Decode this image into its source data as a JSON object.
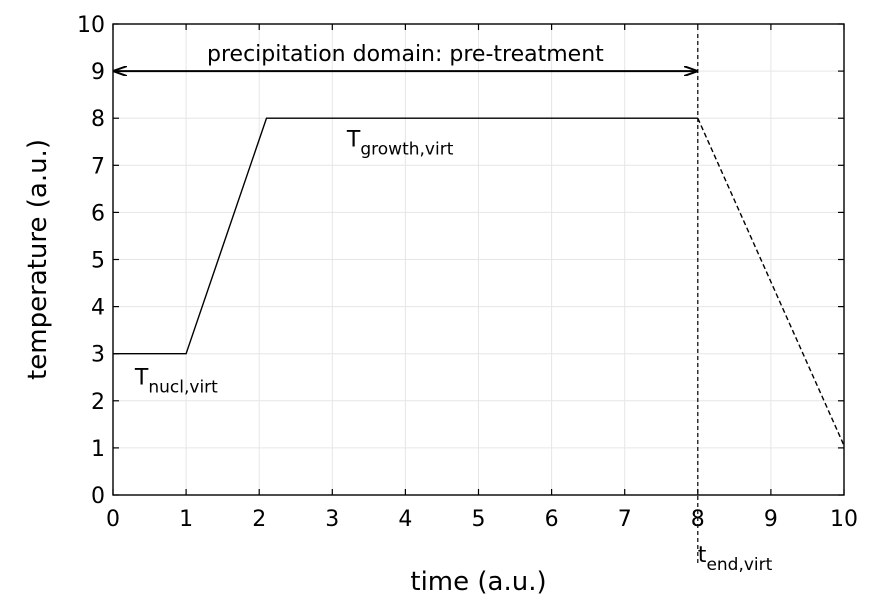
{
  "chart_data": {
    "type": "line",
    "xlabel": "time (a.u.)",
    "ylabel": "temperature (a.u.)",
    "xlim": [
      0,
      10
    ],
    "ylim": [
      0,
      10
    ],
    "xticks": [
      "0",
      "1",
      "2",
      "3",
      "4",
      "5",
      "6",
      "7",
      "8",
      "9",
      "10"
    ],
    "yticks": [
      "0",
      "1",
      "2",
      "3",
      "4",
      "5",
      "6",
      "7",
      "8",
      "9",
      "10"
    ],
    "grid": true,
    "series": [
      {
        "style": "solid",
        "color": "#000000",
        "points": [
          {
            "x": 0,
            "y": 3
          },
          {
            "x": 1,
            "y": 3
          },
          {
            "x": 2.1,
            "y": 8
          },
          {
            "x": 8,
            "y": 8
          }
        ]
      },
      {
        "style": "dashed",
        "color": "#000000",
        "points": [
          {
            "x": 8,
            "y": 8
          },
          {
            "x": 10,
            "y": 1.05
          }
        ]
      }
    ],
    "vertical_line": {
      "x": 8,
      "style": "dashed",
      "color": "#000000"
    },
    "domain_arrow": {
      "x_start": 0,
      "x_end": 8,
      "y": 9,
      "label": "precipitation domain: pre-treatment"
    },
    "annotations": {
      "t_nucl": {
        "main": "T",
        "sub": "nucl,virt",
        "x": 0.3,
        "y": 2.35
      },
      "t_growth": {
        "main": "T",
        "sub": "growth,virt",
        "x": 3.2,
        "y": 7.4
      },
      "t_end": {
        "main": "t",
        "sub": "end,virt",
        "x": 8
      }
    }
  }
}
